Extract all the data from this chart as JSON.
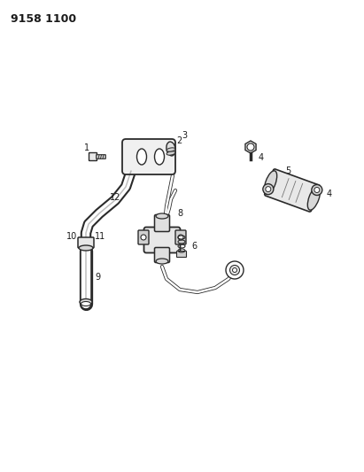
{
  "title": "9158 1100",
  "bg_color": "#ffffff",
  "line_color": "#2a2a2a",
  "label_color": "#1a1a1a",
  "title_fontsize": 9,
  "label_fontsize": 7,
  "figsize": [
    4.11,
    5.33
  ],
  "dpi": 100,
  "xlim": [
    0,
    411
  ],
  "ylim": [
    0,
    533
  ]
}
